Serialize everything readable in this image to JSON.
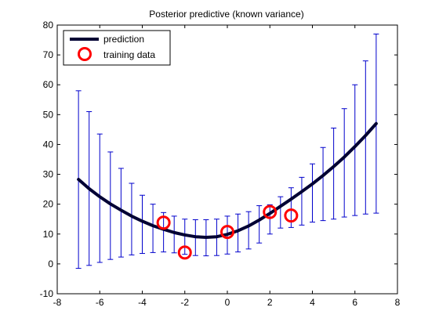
{
  "chart_data": {
    "type": "line",
    "title": "Posterior predictive (known variance)",
    "xlabel": "",
    "ylabel": "",
    "xlim": [
      -8,
      8
    ],
    "ylim": [
      -10,
      80
    ],
    "x_ticks": [
      -8,
      -6,
      -4,
      -2,
      0,
      2,
      4,
      6,
      8
    ],
    "y_ticks": [
      -10,
      0,
      10,
      20,
      30,
      40,
      50,
      60,
      70,
      80
    ],
    "grid": false,
    "legend_position": "top-left",
    "legend": [
      {
        "label": "prediction",
        "marker": "line",
        "color": "#000033"
      },
      {
        "label": "training data",
        "marker": "circle",
        "color": "#ff0000"
      }
    ],
    "series": [
      {
        "name": "prediction",
        "color": "#000033",
        "x": [
          -7.0,
          -6.5,
          -6.0,
          -5.5,
          -5.0,
          -4.5,
          -4.0,
          -3.5,
          -3.0,
          -2.5,
          -2.0,
          -1.5,
          -1.0,
          -0.5,
          0.0,
          0.5,
          1.0,
          1.5,
          2.0,
          2.5,
          3.0,
          3.5,
          4.0,
          4.5,
          5.0,
          5.5,
          6.0,
          6.5,
          7.0
        ],
        "y": [
          28.3,
          25.2,
          22.5,
          20.1,
          18.0,
          16.0,
          14.3,
          12.8,
          11.6,
          10.5,
          9.7,
          9.1,
          8.9,
          9.1,
          9.9,
          11.1,
          12.7,
          14.7,
          16.9,
          19.3,
          21.7,
          24.2,
          26.8,
          29.6,
          32.6,
          35.8,
          39.3,
          43.0,
          47.0
        ],
        "error_low": [
          -1.5,
          -0.5,
          0.5,
          1.5,
          2.3,
          3.0,
          3.5,
          3.8,
          4.0,
          3.7,
          3.2,
          2.8,
          2.7,
          2.8,
          3.3,
          4.0,
          5.0,
          7.0,
          10.0,
          12.0,
          12.2,
          13.0,
          14.0,
          14.5,
          15.0,
          15.7,
          16.2,
          16.7,
          17.0
        ],
        "error_high": [
          58.0,
          51.0,
          43.5,
          37.5,
          32.0,
          27.0,
          23.0,
          20.0,
          17.2,
          16.0,
          15.0,
          14.8,
          14.8,
          15.0,
          16.0,
          16.7,
          17.5,
          19.5,
          19.8,
          22.5,
          25.5,
          29.0,
          33.5,
          39.0,
          45.5,
          52.0,
          60.0,
          68.0,
          77.0
        ]
      },
      {
        "name": "training data",
        "color": "#ff0000",
        "x": [
          -3.0,
          -2.0,
          0.0,
          2.0,
          3.0
        ],
        "y": [
          13.8,
          3.8,
          10.7,
          17.4,
          16.2
        ]
      }
    ]
  }
}
